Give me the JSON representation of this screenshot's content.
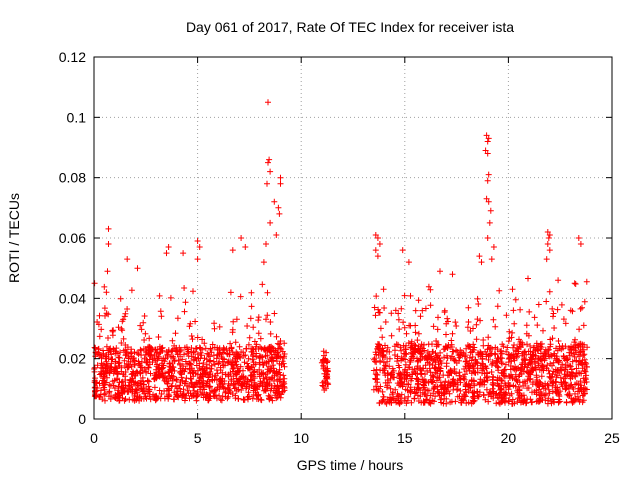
{
  "chart_data": {
    "type": "scatter",
    "title": "Day 061 of 2017, Rate Of TEC Index for receiver ista",
    "xlabel": "GPS time / hours",
    "ylabel": "ROTI / TECUs",
    "xlim": [
      0,
      25
    ],
    "ylim": [
      0,
      0.12
    ],
    "xticks": [
      0,
      5,
      10,
      15,
      20,
      25
    ],
    "xtick_labels": [
      "0",
      "5",
      "10",
      "15",
      "20",
      "25"
    ],
    "yticks": [
      0,
      0.02,
      0.04,
      0.06,
      0.08,
      0.1,
      0.12
    ],
    "ytick_labels": [
      "0",
      "0.02",
      "0.04",
      "0.06",
      "0.08",
      "0.1",
      "0.12"
    ],
    "grid": true,
    "marker": "+",
    "color": "#ff0000",
    "segments": [
      {
        "x_start": 0.0,
        "x_end": 9.2,
        "base_min": 0.006,
        "base_max": 0.024
      },
      {
        "x_start": 11.0,
        "x_end": 11.3,
        "base_min": 0.009,
        "base_max": 0.02
      },
      {
        "x_start": 13.5,
        "x_end": 23.8,
        "base_min": 0.005,
        "base_max": 0.025
      }
    ],
    "outliers": [
      {
        "x": 0.7,
        "y": 0.063
      },
      {
        "x": 0.7,
        "y": 0.058
      },
      {
        "x": 0.65,
        "y": 0.049
      },
      {
        "x": 0.6,
        "y": 0.042
      },
      {
        "x": 1.6,
        "y": 0.053
      },
      {
        "x": 2.1,
        "y": 0.05
      },
      {
        "x": 3.6,
        "y": 0.057
      },
      {
        "x": 3.5,
        "y": 0.055
      },
      {
        "x": 4.3,
        "y": 0.055
      },
      {
        "x": 5.0,
        "y": 0.059
      },
      {
        "x": 5.1,
        "y": 0.057
      },
      {
        "x": 5.0,
        "y": 0.053
      },
      {
        "x": 6.7,
        "y": 0.056
      },
      {
        "x": 7.1,
        "y": 0.06
      },
      {
        "x": 7.3,
        "y": 0.057
      },
      {
        "x": 8.4,
        "y": 0.105
      },
      {
        "x": 8.45,
        "y": 0.086
      },
      {
        "x": 8.4,
        "y": 0.085
      },
      {
        "x": 8.5,
        "y": 0.082
      },
      {
        "x": 8.35,
        "y": 0.078
      },
      {
        "x": 8.7,
        "y": 0.072
      },
      {
        "x": 8.5,
        "y": 0.065
      },
      {
        "x": 9.0,
        "y": 0.08
      },
      {
        "x": 9.0,
        "y": 0.078
      },
      {
        "x": 8.9,
        "y": 0.07
      },
      {
        "x": 8.95,
        "y": 0.068
      },
      {
        "x": 8.8,
        "y": 0.061
      },
      {
        "x": 8.3,
        "y": 0.058
      },
      {
        "x": 8.2,
        "y": 0.052
      },
      {
        "x": 11.2,
        "y": 0.022
      },
      {
        "x": 11.1,
        "y": 0.021
      },
      {
        "x": 13.6,
        "y": 0.061
      },
      {
        "x": 13.7,
        "y": 0.06
      },
      {
        "x": 13.8,
        "y": 0.058
      },
      {
        "x": 13.6,
        "y": 0.056
      },
      {
        "x": 13.7,
        "y": 0.054
      },
      {
        "x": 14.9,
        "y": 0.056
      },
      {
        "x": 15.2,
        "y": 0.052
      },
      {
        "x": 16.7,
        "y": 0.049
      },
      {
        "x": 17.3,
        "y": 0.048
      },
      {
        "x": 18.6,
        "y": 0.054
      },
      {
        "x": 18.7,
        "y": 0.052
      },
      {
        "x": 18.95,
        "y": 0.094
      },
      {
        "x": 19.05,
        "y": 0.093
      },
      {
        "x": 19.0,
        "y": 0.092
      },
      {
        "x": 18.9,
        "y": 0.089
      },
      {
        "x": 19.0,
        "y": 0.088
      },
      {
        "x": 19.05,
        "y": 0.081
      },
      {
        "x": 19.0,
        "y": 0.079
      },
      {
        "x": 18.95,
        "y": 0.073
      },
      {
        "x": 19.05,
        "y": 0.072
      },
      {
        "x": 19.15,
        "y": 0.069
      },
      {
        "x": 19.1,
        "y": 0.065
      },
      {
        "x": 19.0,
        "y": 0.06
      },
      {
        "x": 19.3,
        "y": 0.057
      },
      {
        "x": 19.2,
        "y": 0.053
      },
      {
        "x": 20.2,
        "y": 0.043
      },
      {
        "x": 21.9,
        "y": 0.062
      },
      {
        "x": 22.0,
        "y": 0.061
      },
      {
        "x": 21.95,
        "y": 0.06
      },
      {
        "x": 21.9,
        "y": 0.058
      },
      {
        "x": 22.0,
        "y": 0.056
      },
      {
        "x": 21.85,
        "y": 0.053
      },
      {
        "x": 22.4,
        "y": 0.046
      },
      {
        "x": 23.4,
        "y": 0.06
      },
      {
        "x": 23.5,
        "y": 0.058
      },
      {
        "x": 23.2,
        "y": 0.045
      }
    ]
  }
}
